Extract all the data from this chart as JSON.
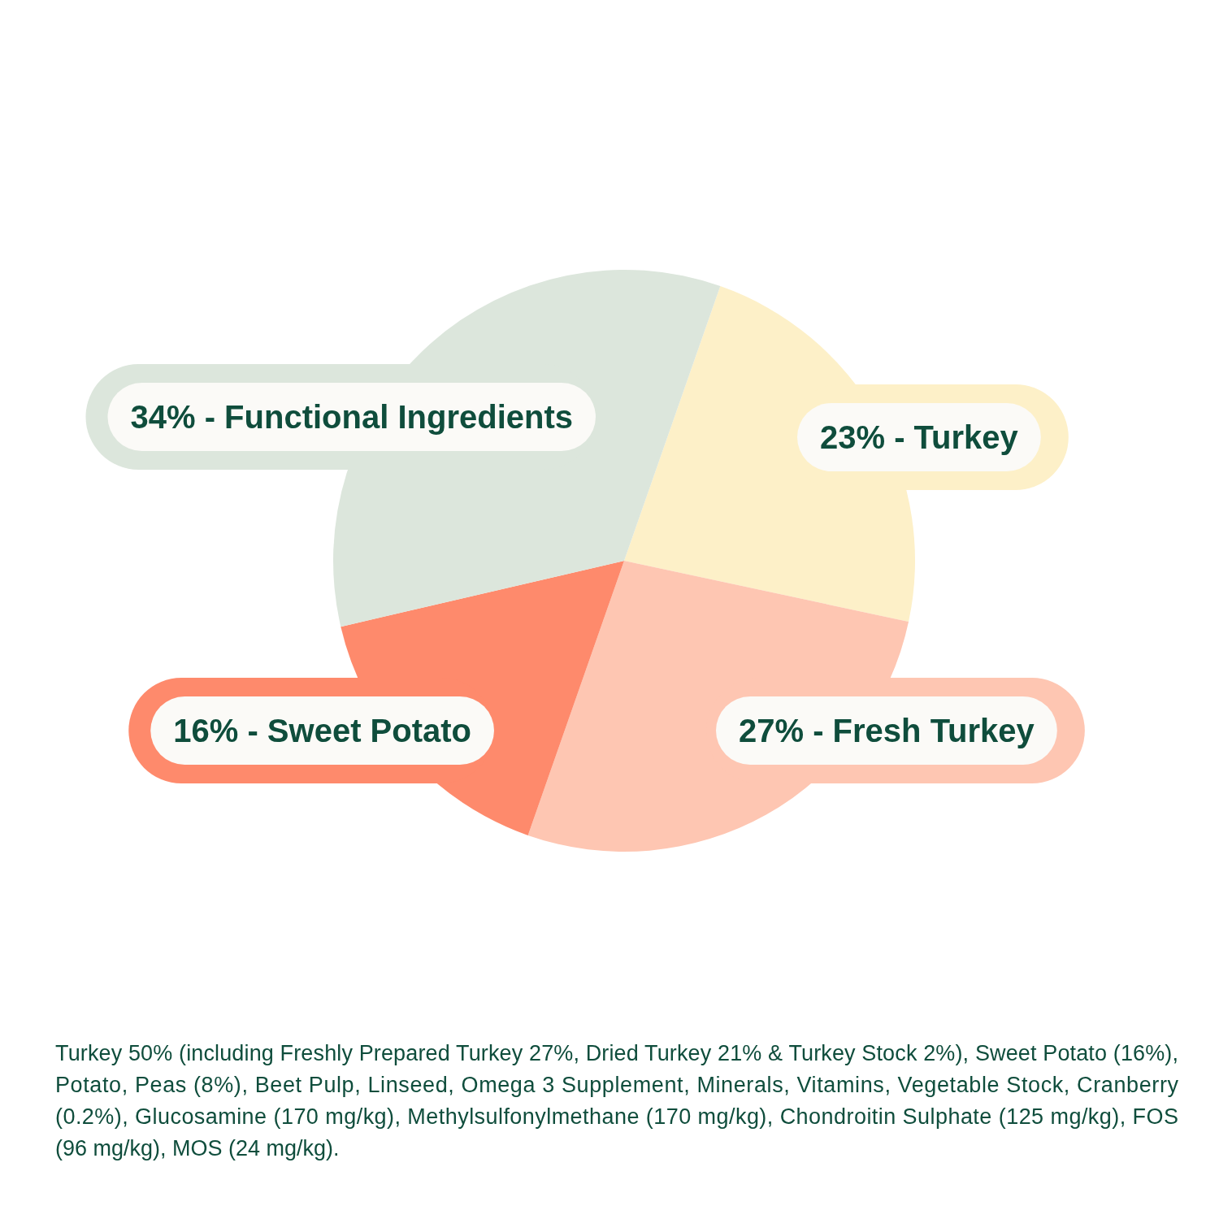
{
  "chart_data": {
    "type": "pie",
    "categories": [
      "23% - Turkey",
      "27% - Fresh Turkey",
      "16% - Sweet Potato",
      "34% - Functional Ingredients"
    ],
    "values": [
      23,
      27,
      16,
      34
    ],
    "colors": [
      "#fdf0c8",
      "#fec6b2",
      "#fe8a6c",
      "#dce6dc"
    ],
    "annotations": [
      "Turkey 50% (including Freshly Prepared Turkey 27%, Dried Turkey 21% & Turkey Stock 2%), Sweet Potato (16%), Potato, Peas (8%), Beet Pulp, Linseed, Omega 3 Supplement, Minerals, Vitamins, Vegetable Stock, Cranberry (0.2%), Glucosamine (170 mg/kg), Methylsulfonylmethane (170 mg/kg), Chondroitin Sulphate (125 mg/kg), FOS (96 mg/kg), MOS (24 mg/kg)."
    ]
  }
}
